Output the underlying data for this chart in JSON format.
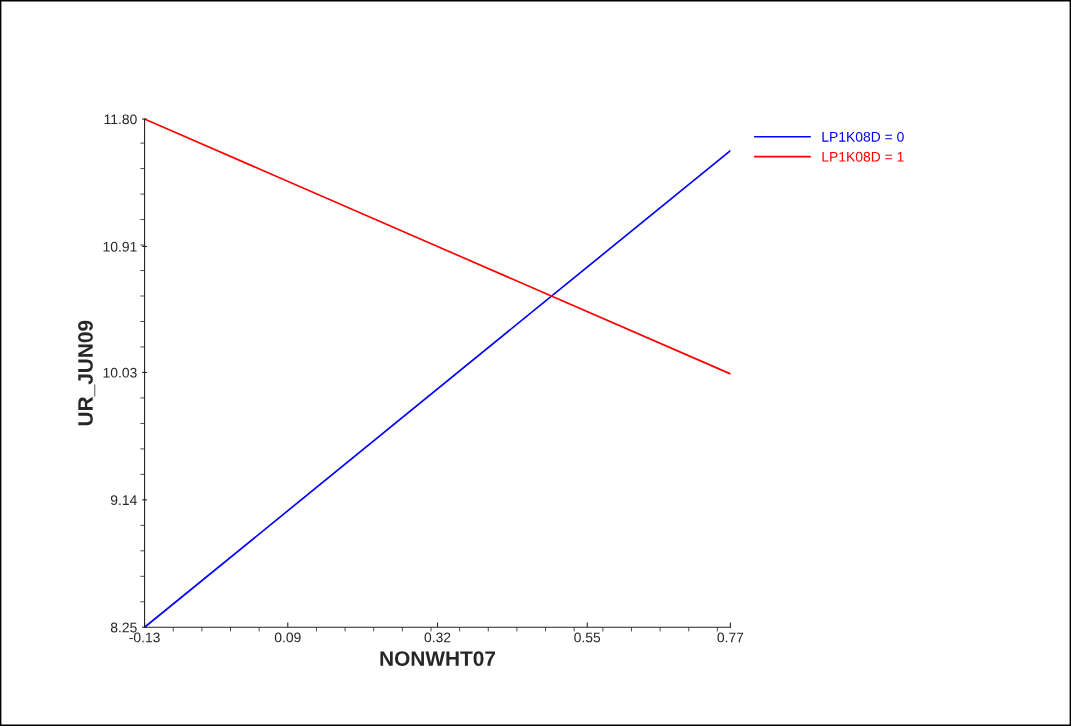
{
  "chart_data": {
    "type": "line",
    "xlabel": "NONWHT07",
    "ylabel": "UR_JUN09",
    "x": [
      -0.13,
      0.77
    ],
    "series": [
      {
        "name": "LP1K08D = 0",
        "color": "#0000ff",
        "values": [
          8.25,
          11.58
        ]
      },
      {
        "name": "LP1K08D = 1",
        "color": "#ff0000",
        "values": [
          11.8,
          10.02
        ]
      }
    ],
    "xlim": [
      -0.13,
      0.77
    ],
    "xticks": [
      {
        "value": -0.13,
        "label": "-0.13"
      },
      {
        "value": 0.09,
        "label": "0.09"
      },
      {
        "value": 0.32,
        "label": "0.32"
      },
      {
        "value": 0.55,
        "label": "0.55"
      },
      {
        "value": 0.77,
        "label": "0.77"
      }
    ],
    "ylim": [
      8.25,
      11.8
    ],
    "yticks": [
      {
        "value": 8.25,
        "label": "8.25"
      },
      {
        "value": 9.14,
        "label": "9.14"
      },
      {
        "value": 10.03,
        "label": "10.03"
      },
      {
        "value": 10.91,
        "label": "10.91"
      },
      {
        "value": 11.8,
        "label": "11.80"
      }
    ],
    "grid": false,
    "legend": "top right",
    "marker": "none",
    "line_style": "solid"
  }
}
